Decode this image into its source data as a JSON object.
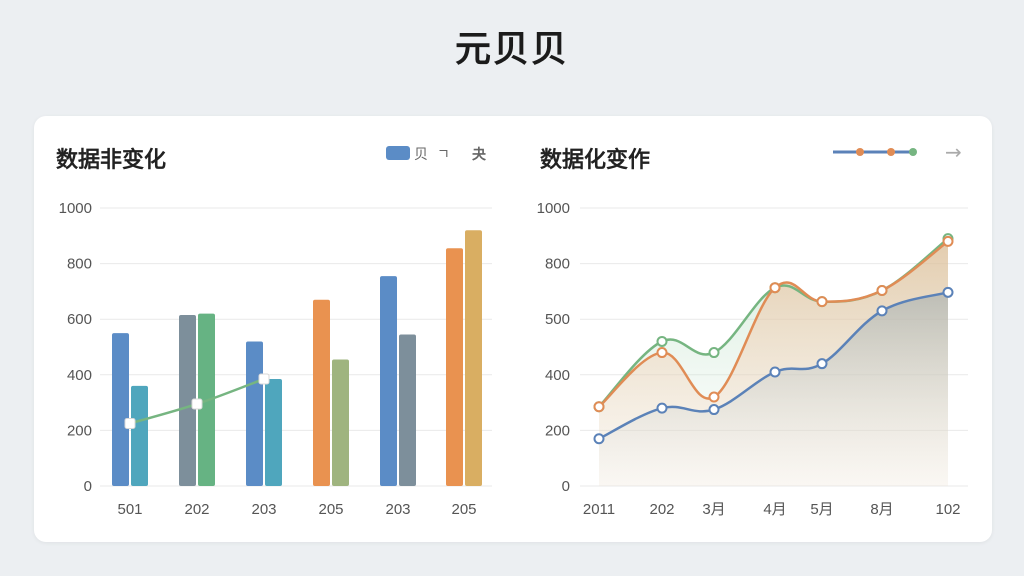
{
  "page": {
    "title": "元贝贝"
  },
  "colors": {
    "blue": "#5b8cc6",
    "teal": "#4fa6bd",
    "slate": "#7d8f9b",
    "green": "#66b383",
    "orange": "#e99250",
    "olive": "#9fb47f",
    "gold": "#d9ae62",
    "line_green": "#76b581",
    "line_orange": "#e08c55",
    "line_blue": "#5b82b8"
  },
  "chart_data": [
    {
      "type": "bar",
      "title": "数据非变化",
      "legend": {
        "items": [
          "贝",
          "ㄱ",
          "夬"
        ],
        "position": "top-right"
      },
      "categories": [
        "501",
        "202",
        "203",
        "205",
        "203",
        "205"
      ],
      "bars": [
        {
          "values": [
            550,
            615,
            520,
            670,
            755,
            855
          ],
          "colors": [
            "blue",
            "slate",
            "blue",
            "orange",
            "blue",
            "orange"
          ]
        },
        {
          "values": [
            360,
            620,
            385,
            455,
            545,
            920
          ],
          "colors": [
            "teal",
            "green",
            "teal",
            "olive",
            "slate",
            "gold"
          ]
        }
      ],
      "line": {
        "values": [
          225,
          295,
          385
        ],
        "color": "line_green"
      },
      "ylim": [
        0,
        1000
      ],
      "yticks": [
        "0",
        "200",
        "400",
        "600",
        "800",
        "1000"
      ],
      "grid": true
    },
    {
      "type": "line",
      "title": "数据化变作",
      "legend": {
        "position": "top-right",
        "arrow": "→"
      },
      "categories": [
        "2011",
        "202",
        "3月",
        "4月",
        "5月",
        "8月",
        "102"
      ],
      "ylim": [
        0,
        1000
      ],
      "yticks": [
        "0",
        "200",
        "400",
        "500",
        "800",
        "1000"
      ],
      "series": [
        {
          "color": "line_green",
          "values": [
            285,
            460,
            440,
            670,
            595,
            655,
            890
          ]
        },
        {
          "color": "line_orange",
          "values": [
            285,
            440,
            320,
            670,
            595,
            655,
            880
          ]
        },
        {
          "color": "line_blue",
          "values": [
            170,
            280,
            275,
            405,
            420,
            545,
            645
          ]
        }
      ],
      "grid": true
    }
  ]
}
